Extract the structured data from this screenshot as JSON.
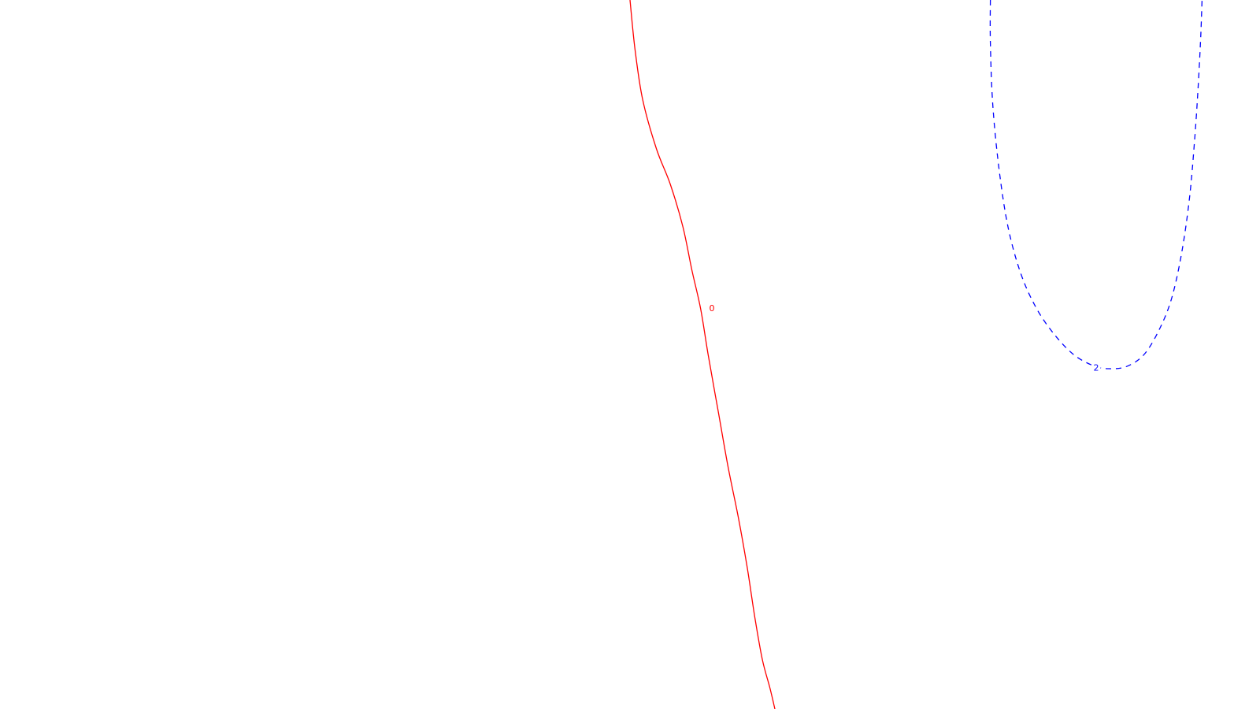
{
  "chart_data": {
    "type": "contour",
    "title": "",
    "xlabel": "",
    "ylabel": "",
    "grid": false,
    "legend": "none",
    "series": [
      {
        "name": "contour-0",
        "label": "0",
        "color": "#ff0000",
        "style": "solid",
        "x": [
          0.5,
          0.504,
          0.51,
          0.521,
          0.532,
          0.542,
          0.549,
          0.556,
          0.562,
          0.57,
          0.578,
          0.586,
          0.593,
          0.599,
          0.605,
          0.611,
          0.615
        ],
        "y": [
          1.0,
          0.93,
          0.86,
          0.79,
          0.74,
          0.68,
          0.62,
          0.565,
          0.5,
          0.42,
          0.34,
          0.27,
          0.2,
          0.13,
          0.07,
          0.03,
          0.0
        ]
      },
      {
        "name": "contour-2",
        "label": "2",
        "color": "#0000ff",
        "style": "dashed",
        "x": [
          0.786,
          0.786,
          0.788,
          0.793,
          0.8,
          0.81,
          0.822,
          0.836,
          0.852,
          0.868,
          0.88,
          0.894,
          0.908,
          0.92,
          0.93,
          0.938,
          0.944,
          0.948,
          0.951,
          0.953,
          0.954
        ],
        "y": [
          1.0,
          0.94,
          0.85,
          0.76,
          0.68,
          0.615,
          0.567,
          0.53,
          0.5,
          0.484,
          0.48,
          0.483,
          0.5,
          0.535,
          0.58,
          0.645,
          0.72,
          0.8,
          0.88,
          0.95,
          1.0
        ]
      }
    ],
    "labels": [
      {
        "text": "0",
        "series": "contour-0",
        "at": [
          0.565,
          0.565
        ]
      },
      {
        "text": "2",
        "series": "contour-2",
        "at": [
          0.87,
          0.481
        ]
      }
    ],
    "xlim": [
      0,
      1
    ],
    "ylim": [
      0,
      1
    ]
  }
}
